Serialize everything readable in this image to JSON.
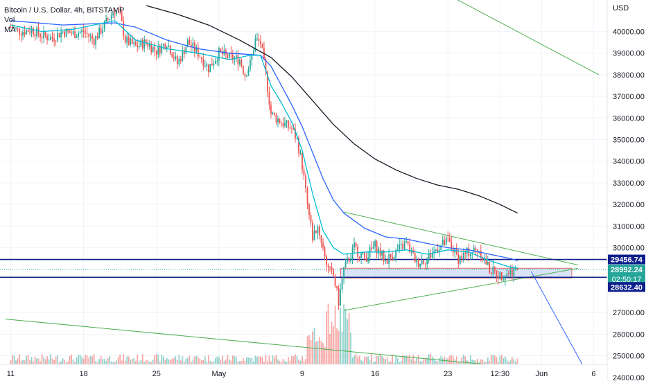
{
  "legend": {
    "symbol": "Bitcoin / U.S. Dollar, 4h, BITSTAMP",
    "vol": "Vol",
    "ma": "MA"
  },
  "chart_data": {
    "type": "candlestick",
    "currency": "USD",
    "y_ticks": [
      40000,
      39000,
      38000,
      37000,
      36000,
      35000,
      34000,
      33000,
      32000,
      31000,
      30000,
      27000,
      26000,
      25000,
      24000
    ],
    "y_tick_labels": [
      "40000.00",
      "39000.00",
      "38000.00",
      "37000.00",
      "36000.00",
      "35000.00",
      "34000.00",
      "33000.00",
      "32000.00",
      "31000.00",
      "30000.00",
      "27000.00",
      "26000.00",
      "25000.00",
      "24000.00"
    ],
    "ylim": [
      23900,
      41200
    ],
    "x_tick_labels": [
      "11",
      "18",
      "25",
      "May",
      "9",
      "16",
      "23",
      "12:30",
      "Jun",
      "6"
    ],
    "x_tick_days": [
      0,
      7,
      14,
      20,
      28,
      35,
      42,
      47,
      51,
      56
    ],
    "xlim_days": [
      -0.5,
      57.3
    ],
    "price_labels": [
      {
        "text": "29456.74",
        "value": 29456.74,
        "color": "#0d1f8c"
      },
      {
        "text": "28992.24",
        "value": 28992.24,
        "color": "#26a69a"
      },
      {
        "text": "02:50:17",
        "value": 28992.24,
        "color": "#26a69a"
      },
      {
        "text": "28632.40",
        "value": 28632.4,
        "color": "#0d1f8c"
      }
    ],
    "horizontal_lines": [
      29456.74,
      28632.4
    ],
    "support_zone": [
      28600,
      29050
    ],
    "price_path": [
      [
        0,
        40200
      ],
      [
        1,
        40000
      ],
      [
        2,
        40100
      ],
      [
        3,
        39800
      ],
      [
        4,
        39700
      ],
      [
        5,
        40000
      ],
      [
        6,
        39900
      ],
      [
        7,
        40000
      ],
      [
        8,
        39600
      ],
      [
        9,
        40300
      ],
      [
        10,
        41000
      ],
      [
        10.5,
        40700
      ],
      [
        11,
        39600
      ],
      [
        12,
        39300
      ],
      [
        13,
        39500
      ],
      [
        14,
        39100
      ],
      [
        15,
        39500
      ],
      [
        16,
        38500
      ],
      [
        17,
        39500
      ],
      [
        18,
        39000
      ],
      [
        19,
        38300
      ],
      [
        20,
        39000
      ],
      [
        21,
        38800
      ],
      [
        22,
        38700
      ],
      [
        22.5,
        38000
      ],
      [
        23,
        38500
      ],
      [
        23.5,
        39600
      ],
      [
        24,
        39500
      ],
      [
        24.5,
        38000
      ],
      [
        25,
        36200
      ],
      [
        26,
        35800
      ],
      [
        27,
        35500
      ],
      [
        27.5,
        35000
      ],
      [
        28,
        33800
      ],
      [
        28.5,
        32000
      ],
      [
        29,
        30500
      ],
      [
        29.5,
        31000
      ],
      [
        30,
        30000
      ],
      [
        30.5,
        29000
      ],
      [
        31,
        28700
      ],
      [
        31.5,
        27500
      ],
      [
        32,
        29000
      ],
      [
        33,
        30000
      ],
      [
        34,
        29500
      ],
      [
        35,
        30100
      ],
      [
        36,
        29400
      ],
      [
        37,
        29800
      ],
      [
        38,
        30200
      ],
      [
        39,
        29300
      ],
      [
        40,
        29500
      ],
      [
        41,
        30000
      ],
      [
        42,
        30300
      ],
      [
        43,
        29500
      ],
      [
        44,
        29800
      ],
      [
        45,
        29900
      ],
      [
        46,
        29000
      ],
      [
        47,
        28700
      ],
      [
        48,
        28900
      ],
      [
        48.7,
        29000
      ]
    ],
    "ma_fast": [
      [
        0,
        40300
      ],
      [
        3,
        40000
      ],
      [
        6,
        40100
      ],
      [
        10,
        40500
      ],
      [
        12,
        39600
      ],
      [
        15,
        39200
      ],
      [
        18,
        39000
      ],
      [
        21,
        38700
      ],
      [
        23,
        38900
      ],
      [
        24,
        38900
      ],
      [
        25,
        37500
      ],
      [
        26,
        36700
      ],
      [
        27,
        35800
      ],
      [
        28,
        34500
      ],
      [
        29,
        32500
      ],
      [
        30,
        30800
      ],
      [
        31,
        30000
      ],
      [
        32,
        29700
      ],
      [
        34,
        29800
      ],
      [
        36,
        29800
      ],
      [
        38,
        29900
      ],
      [
        40,
        29700
      ],
      [
        42,
        29900
      ],
      [
        44,
        29800
      ],
      [
        46,
        29400
      ],
      [
        48,
        29100
      ],
      [
        48.7,
        29050
      ]
    ],
    "ma_mid": [
      [
        0,
        40500
      ],
      [
        5,
        40300
      ],
      [
        10,
        40400
      ],
      [
        12,
        40200
      ],
      [
        15,
        39600
      ],
      [
        18,
        39200
      ],
      [
        21,
        39000
      ],
      [
        24,
        38900
      ],
      [
        25,
        38400
      ],
      [
        26,
        37500
      ],
      [
        27,
        36600
      ],
      [
        28,
        35600
      ],
      [
        29,
        34400
      ],
      [
        30,
        33200
      ],
      [
        31,
        32200
      ],
      [
        32,
        31600
      ],
      [
        34,
        30900
      ],
      [
        36,
        30500
      ],
      [
        38,
        30400
      ],
      [
        40,
        30200
      ],
      [
        42,
        30000
      ],
      [
        44,
        29900
      ],
      [
        46,
        29700
      ],
      [
        48,
        29500
      ],
      [
        48.7,
        29400
      ]
    ],
    "ma_slow": [
      [
        13,
        41200
      ],
      [
        16,
        40800
      ],
      [
        19,
        40300
      ],
      [
        22,
        39600
      ],
      [
        25,
        38800
      ],
      [
        27,
        37900
      ],
      [
        29,
        36800
      ],
      [
        31,
        35700
      ],
      [
        33,
        34800
      ],
      [
        35,
        34100
      ],
      [
        37,
        33600
      ],
      [
        39,
        33200
      ],
      [
        41,
        32900
      ],
      [
        43,
        32700
      ],
      [
        45,
        32400
      ],
      [
        47,
        32000
      ],
      [
        48.7,
        31600
      ]
    ],
    "trendlines": [
      [
        [
          32,
          31650
        ],
        [
          54.5,
          29200
        ]
      ],
      [
        [
          32,
          27100
        ],
        [
          54.5,
          29050
        ]
      ],
      [
        [
          -0.5,
          26700
        ],
        [
          54.5,
          24200
        ]
      ],
      [
        [
          33,
          44000
        ],
        [
          56.5,
          38000
        ]
      ]
    ],
    "projection_arrow": [
      [
        50,
        28900
      ],
      [
        55.6,
        24000
      ]
    ],
    "volume_peak_day": 31.5
  }
}
